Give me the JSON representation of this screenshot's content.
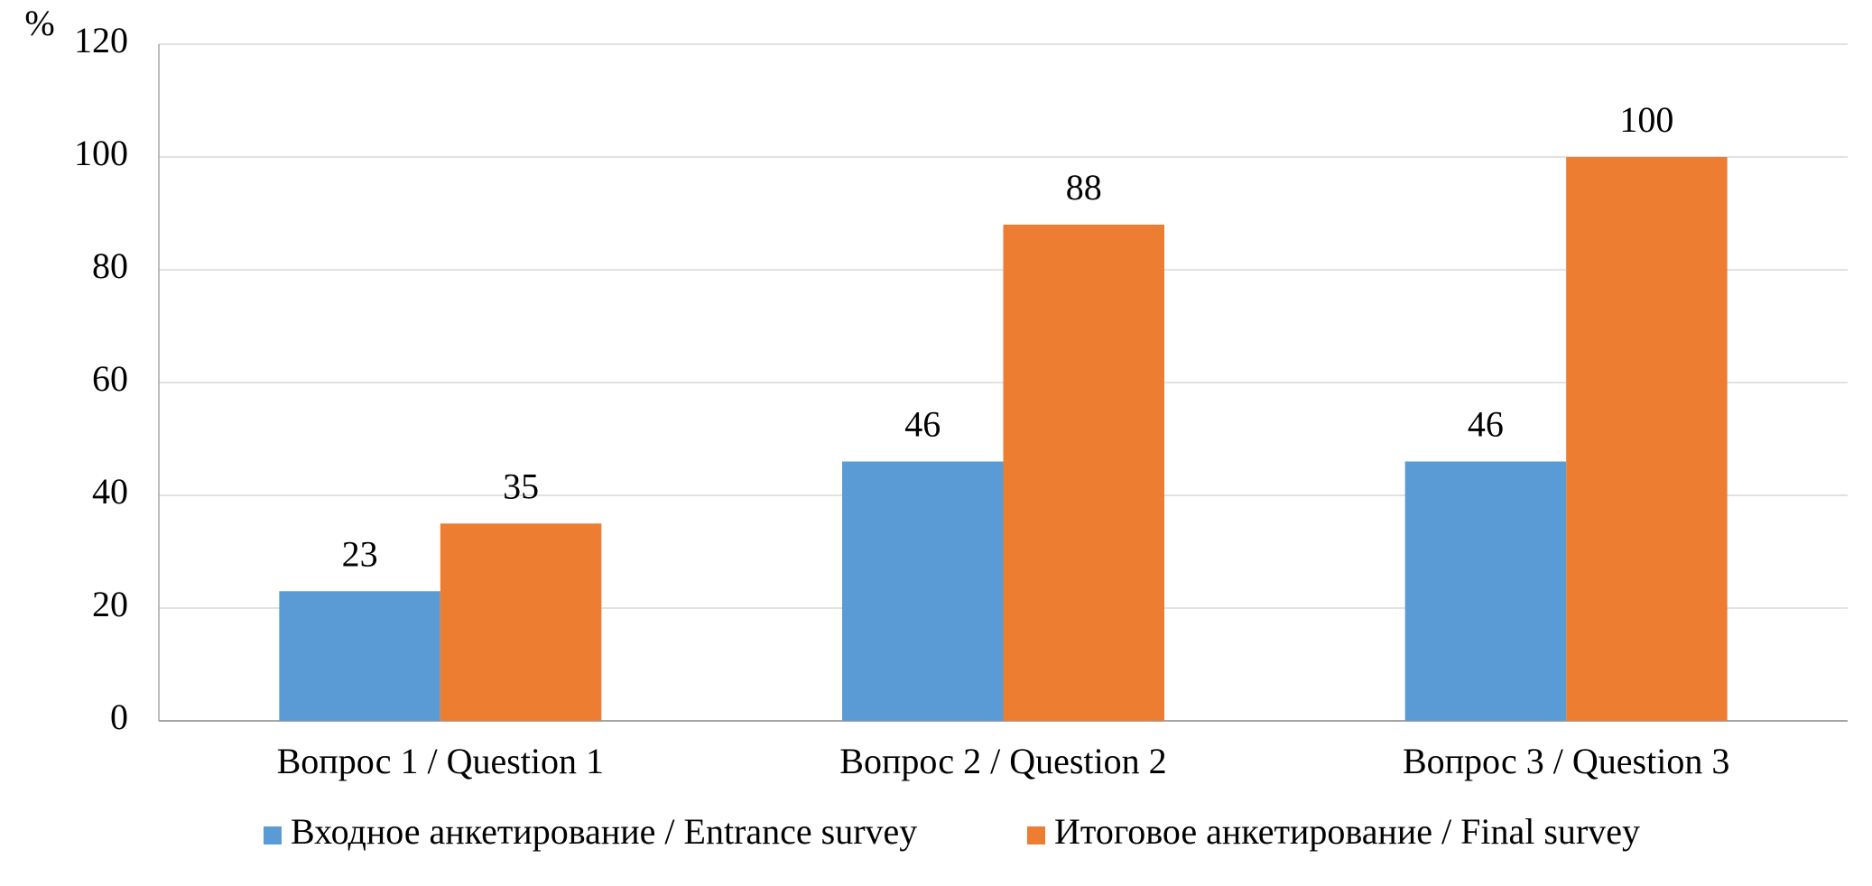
{
  "chart_data": {
    "type": "bar",
    "y_label": "%",
    "categories": [
      "Вопрос 1 / Question 1",
      "Вопрос 2 / Question 2",
      "Вопрос 3 / Question 3"
    ],
    "series": [
      {
        "name": "Входное анкетирование / Entrance survey",
        "color": "#5b9bd5",
        "values": [
          23,
          46,
          46
        ]
      },
      {
        "name": "Итоговое анкетирование / Final survey",
        "color": "#ed7d31",
        "values": [
          35,
          88,
          100
        ]
      }
    ],
    "ylim": [
      0,
      120
    ],
    "yticks": [
      0,
      20,
      40,
      60,
      80,
      100,
      120
    ],
    "grid": true,
    "legend": "bottom"
  }
}
